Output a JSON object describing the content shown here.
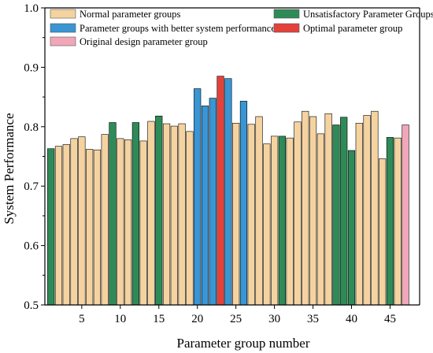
{
  "chart_data": {
    "type": "bar",
    "xlabel": "Parameter group number",
    "ylabel": "System Performance",
    "ylim": [
      0.5,
      1.0
    ],
    "yticks": [
      "0.5",
      "0.6",
      "0.7",
      "0.8",
      "0.9",
      "1.0"
    ],
    "xticks": [
      5,
      10,
      15,
      20,
      25,
      30,
      35,
      40,
      45
    ],
    "grid": false,
    "legend_position": "top",
    "legend": [
      {
        "label": "Normal parameter groups",
        "color": "#f5d3a0",
        "key": "normal"
      },
      {
        "label": "Unsatisfactory Parameter Groups",
        "color": "#2e8b57",
        "key": "unsat"
      },
      {
        "label": "Parameter groups with better system performance",
        "color": "#3a95d4",
        "key": "better"
      },
      {
        "label": "Optimal parameter group",
        "color": "#e5413b",
        "key": "optimal"
      },
      {
        "label": "Original design parameter group",
        "color": "#f2a7b9",
        "key": "original"
      }
    ],
    "series": {
      "x": [
        1,
        2,
        3,
        4,
        5,
        6,
        7,
        8,
        9,
        10,
        11,
        12,
        13,
        14,
        15,
        16,
        17,
        18,
        19,
        20,
        21,
        22,
        23,
        24,
        25,
        26,
        27,
        28,
        29,
        30,
        31,
        32,
        33,
        34,
        35,
        36,
        37,
        38,
        39,
        40,
        41,
        42,
        43,
        44,
        45,
        46,
        47
      ],
      "values": [
        0.763,
        0.767,
        0.77,
        0.78,
        0.783,
        0.762,
        0.761,
        0.787,
        0.807,
        0.78,
        0.778,
        0.807,
        0.776,
        0.809,
        0.818,
        0.805,
        0.801,
        0.805,
        0.792,
        0.864,
        0.835,
        0.848,
        0.885,
        0.881,
        0.806,
        0.843,
        0.804,
        0.817,
        0.771,
        0.784,
        0.784,
        0.781,
        0.808,
        0.826,
        0.817,
        0.788,
        0.822,
        0.803,
        0.816,
        0.76,
        0.806,
        0.819,
        0.826,
        0.746,
        0.782,
        0.781,
        0.803
      ],
      "groups": [
        "unsat",
        "normal",
        "normal",
        "normal",
        "normal",
        "normal",
        "normal",
        "normal",
        "unsat",
        "normal",
        "normal",
        "unsat",
        "normal",
        "normal",
        "unsat",
        "normal",
        "normal",
        "normal",
        "normal",
        "better",
        "better",
        "better",
        "optimal",
        "better",
        "normal",
        "better",
        "normal",
        "normal",
        "normal",
        "normal",
        "unsat",
        "normal",
        "normal",
        "normal",
        "normal",
        "normal",
        "normal",
        "unsat",
        "unsat",
        "unsat",
        "normal",
        "normal",
        "normal",
        "normal",
        "unsat",
        "normal",
        "original"
      ]
    }
  }
}
